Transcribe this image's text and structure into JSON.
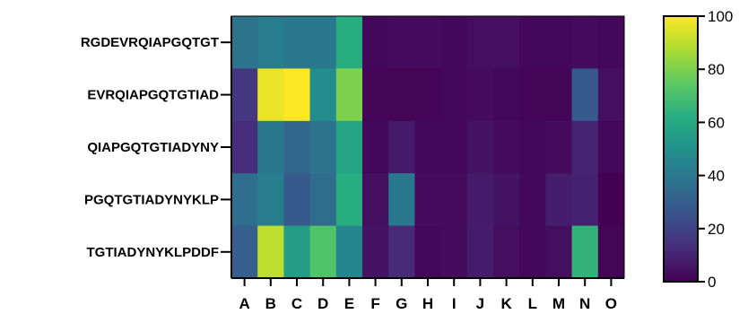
{
  "chart_data": {
    "type": "heatmap",
    "title": "",
    "xlabel": "",
    "ylabel": "",
    "columns": [
      "A",
      "B",
      "C",
      "D",
      "E",
      "F",
      "G",
      "H",
      "I",
      "J",
      "K",
      "L",
      "M",
      "N",
      "O"
    ],
    "rows": [
      "RGDEVRQIAPGQTGT",
      "EVRQIAPGQTGTIAD",
      "QIAPGQTGTIADYNY",
      "PGQTGTIADYNYKLP",
      "TGTIADYNYKLPDDF"
    ],
    "values": [
      [
        38,
        42,
        40,
        40,
        62,
        2,
        3,
        3,
        2,
        4,
        4,
        2,
        2,
        3,
        2
      ],
      [
        16,
        97,
        100,
        48,
        80,
        1,
        1,
        1,
        2,
        3,
        2,
        1,
        1,
        28,
        4
      ],
      [
        13,
        40,
        33,
        38,
        58,
        2,
        7,
        2,
        2,
        5,
        3,
        2,
        3,
        10,
        2
      ],
      [
        36,
        42,
        28,
        35,
        62,
        4,
        40,
        3,
        3,
        7,
        5,
        2,
        8,
        9,
        0
      ],
      [
        30,
        90,
        55,
        72,
        45,
        5,
        12,
        2,
        3,
        8,
        4,
        2,
        4,
        65,
        1
      ]
    ],
    "colorbar": {
      "range": [
        0,
        100
      ],
      "ticks": [
        "0",
        "20",
        "40",
        "60",
        "80",
        "100"
      ],
      "colormap": "viridis"
    },
    "grid": false,
    "legend": "right"
  }
}
